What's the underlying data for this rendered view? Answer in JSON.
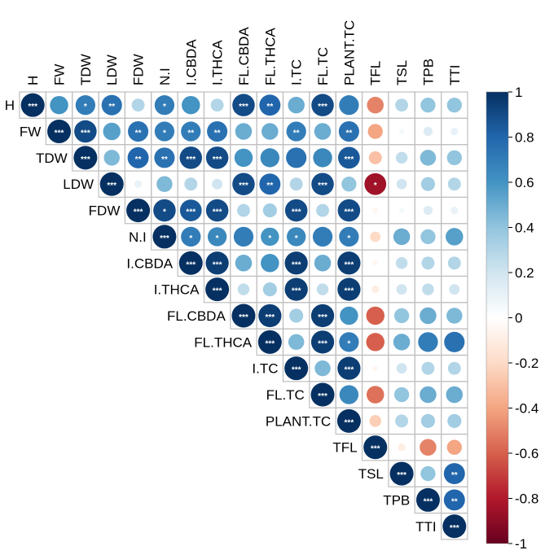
{
  "chart_data": {
    "type": "heatmap",
    "style": "upper-triangle correlation circles",
    "variables": [
      "H",
      "FW",
      "TDW",
      "LDW",
      "FDW",
      "N.I",
      "I.CBDA",
      "I.THCA",
      "FL.CBDA",
      "FL.THCA",
      "I.TC",
      "FL.TC",
      "PLANT.TC",
      "TFL",
      "TSL",
      "TPB",
      "TTI"
    ],
    "matrix": [
      [
        1,
        0.6,
        0.7,
        0.75,
        0.3,
        0.7,
        0.6,
        0.3,
        0.9,
        0.8,
        0.5,
        0.9,
        0.7,
        -0.5,
        0.3,
        0.4,
        0.4
      ],
      [
        null,
        1,
        0.9,
        0.55,
        0.75,
        0.7,
        0.7,
        0.75,
        0.5,
        0.5,
        0.7,
        0.5,
        0.75,
        -0.4,
        0.05,
        0.15,
        0.1
      ],
      [
        null,
        null,
        1,
        0.45,
        0.8,
        0.75,
        0.9,
        0.9,
        0.6,
        0.65,
        0.75,
        0.65,
        0.85,
        -0.3,
        0.25,
        0.45,
        0.4
      ],
      [
        null,
        null,
        null,
        1,
        0.1,
        0.45,
        0.3,
        0.2,
        0.9,
        0.8,
        0.3,
        0.9,
        0.4,
        -0.85,
        0.2,
        0.35,
        0.3
      ],
      [
        null,
        null,
        null,
        null,
        1,
        0.9,
        0.85,
        0.9,
        0.3,
        0.35,
        0.9,
        0.3,
        0.9,
        -0.05,
        0.05,
        0.15,
        0.1
      ],
      [
        null,
        null,
        null,
        null,
        null,
        1,
        0.7,
        0.65,
        0.7,
        0.6,
        0.65,
        0.7,
        0.7,
        -0.2,
        0.5,
        0.4,
        0.55
      ],
      [
        null,
        null,
        null,
        null,
        null,
        null,
        1,
        0.95,
        0.5,
        0.6,
        0.95,
        0.5,
        0.95,
        -0.05,
        0.25,
        0.3,
        0.3
      ],
      [
        null,
        null,
        null,
        null,
        null,
        null,
        null,
        1,
        0.25,
        0.35,
        0.95,
        0.25,
        0.95,
        -0.1,
        0.2,
        0.25,
        0.2
      ],
      [
        null,
        null,
        null,
        null,
        null,
        null,
        null,
        null,
        1,
        0.95,
        0.35,
        0.95,
        0.6,
        -0.6,
        0.4,
        0.5,
        0.45
      ],
      [
        null,
        null,
        null,
        null,
        null,
        null,
        null,
        null,
        null,
        1,
        0.45,
        0.95,
        0.7,
        -0.6,
        0.5,
        0.7,
        0.75
      ],
      [
        null,
        null,
        null,
        null,
        null,
        null,
        null,
        null,
        null,
        null,
        1,
        0.45,
        0.95,
        -0.05,
        0.2,
        0.3,
        0.3
      ],
      [
        null,
        null,
        null,
        null,
        null,
        null,
        null,
        null,
        null,
        null,
        null,
        1,
        0.65,
        -0.55,
        0.4,
        0.5,
        0.5
      ],
      [
        null,
        null,
        null,
        null,
        null,
        null,
        null,
        null,
        null,
        null,
        null,
        null,
        1,
        -0.25,
        0.3,
        0.35,
        0.35
      ],
      [
        null,
        null,
        null,
        null,
        null,
        null,
        null,
        null,
        null,
        null,
        null,
        null,
        null,
        1,
        -0.1,
        -0.5,
        -0.4
      ],
      [
        null,
        null,
        null,
        null,
        null,
        null,
        null,
        null,
        null,
        null,
        null,
        null,
        null,
        null,
        1,
        0.4,
        0.8
      ],
      [
        null,
        null,
        null,
        null,
        null,
        null,
        null,
        null,
        null,
        null,
        null,
        null,
        null,
        null,
        null,
        1,
        0.8
      ],
      [
        null,
        null,
        null,
        null,
        null,
        null,
        null,
        null,
        null,
        null,
        null,
        null,
        null,
        null,
        null,
        null,
        1
      ]
    ],
    "significance": [
      [
        "***",
        "",
        "*",
        "**",
        "",
        "*",
        "",
        "",
        "***",
        "**",
        "",
        "***",
        "",
        "",
        "",
        "",
        ""
      ],
      [
        "",
        "***",
        "***",
        "",
        "**",
        "*",
        "**",
        "**",
        "",
        "",
        "**",
        "",
        "**",
        "",
        "",
        "",
        ""
      ],
      [
        "",
        "",
        "***",
        "",
        "**",
        "**",
        "***",
        "***",
        "",
        "",
        "",
        "",
        "***",
        "",
        "",
        "",
        ""
      ],
      [
        "",
        "",
        "",
        "***",
        "",
        "",
        "",
        "",
        "***",
        "**",
        "",
        "***",
        "",
        "*",
        "",
        "",
        ""
      ],
      [
        "",
        "",
        "",
        "",
        "***",
        "*",
        "***",
        "***",
        "",
        "",
        "***",
        "",
        "***",
        "",
        "",
        "",
        ""
      ],
      [
        "",
        "",
        "",
        "",
        "",
        "***",
        "*",
        "*",
        "",
        "*",
        "*",
        "",
        "*",
        "",
        "",
        "",
        ""
      ],
      [
        "",
        "",
        "",
        "",
        "",
        "",
        "***",
        "***",
        "",
        "",
        "***",
        "",
        "***",
        "",
        "",
        "",
        ""
      ],
      [
        "",
        "",
        "",
        "",
        "",
        "",
        "",
        "***",
        "",
        "",
        "***",
        "",
        "***",
        "",
        "",
        "",
        ""
      ],
      [
        "",
        "",
        "",
        "",
        "",
        "",
        "",
        "",
        "***",
        "***",
        "",
        "***",
        "",
        "",
        "",
        "",
        ""
      ],
      [
        "",
        "",
        "",
        "",
        "",
        "",
        "",
        "",
        "",
        "***",
        "",
        "***",
        "*",
        "",
        "",
        "",
        ""
      ],
      [
        "",
        "",
        "",
        "",
        "",
        "",
        "",
        "",
        "",
        "",
        "***",
        "",
        "***",
        "",
        "",
        "",
        ""
      ],
      [
        "",
        "",
        "",
        "",
        "",
        "",
        "",
        "",
        "",
        "",
        "",
        "***",
        "",
        "",
        "",
        "",
        ""
      ],
      [
        "",
        "",
        "",
        "",
        "",
        "",
        "",
        "",
        "",
        "",
        "",
        "",
        "***",
        "",
        "",
        "",
        ""
      ],
      [
        "",
        "",
        "",
        "",
        "",
        "",
        "",
        "",
        "",
        "",
        "",
        "",
        "",
        "***",
        "",
        "",
        ""
      ],
      [
        "",
        "",
        "",
        "",
        "",
        "",
        "",
        "",
        "",
        "",
        "",
        "",
        "",
        "",
        "***",
        "",
        "**"
      ],
      [
        "",
        "",
        "",
        "",
        "",
        "",
        "",
        "",
        "",
        "",
        "",
        "",
        "",
        "",
        "",
        "***",
        "**"
      ],
      [
        "",
        "",
        "",
        "",
        "",
        "",
        "",
        "",
        "",
        "",
        "",
        "",
        "",
        "",
        "",
        "",
        "***"
      ]
    ],
    "colorbar": {
      "range": [
        -1,
        1
      ],
      "ticks": [
        "1",
        "0.8",
        "0.6",
        "0.4",
        "0.2",
        "0",
        "-0.2",
        "-0.4",
        "-0.6",
        "-0.8",
        "-1"
      ],
      "colors": [
        "#67001F",
        "#B2182B",
        "#D6604D",
        "#F4A582",
        "#FDDBC7",
        "#FFFFFF",
        "#D1E5F0",
        "#92C5DE",
        "#4393C3",
        "#2166AC",
        "#053061"
      ]
    },
    "legend_position": "right"
  }
}
